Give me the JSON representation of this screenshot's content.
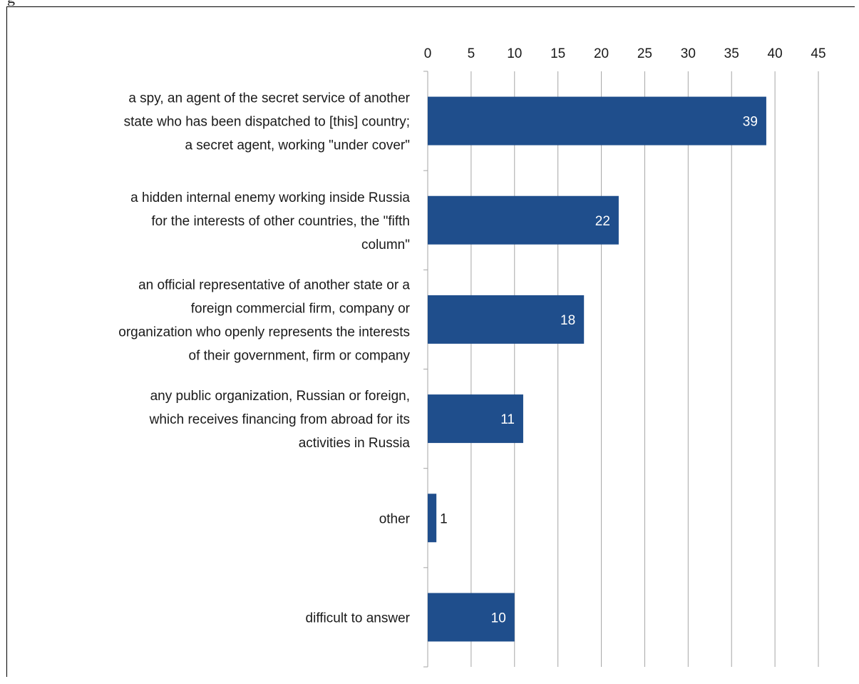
{
  "chart_data": {
    "type": "bar",
    "orientation": "horizontal",
    "title": "",
    "xlabel": "",
    "ylabel": "",
    "xlim": [
      0,
      45
    ],
    "ticks": [
      0,
      5,
      10,
      15,
      20,
      25,
      30,
      35,
      40,
      45
    ],
    "tick_labels": [
      "0",
      "5",
      "10",
      "15",
      "20",
      "25",
      "30",
      "35",
      "40",
      "45"
    ],
    "grid": true,
    "legend": "none",
    "bar_color": "#1f4e8c",
    "categories": [
      "a spy, an agent of the secret service of another state who has been dispatched to [this] country; a secret agent, working \"under cover\"",
      "a hidden internal enemy working inside Russia for the interests of other countries, the \"fifth column\"",
      "an official representative of another state or a foreign commercial firm, company or organization who openly represents the interests of their government, firm or company",
      "any public organization, Russian or foreign, which receives financing from abroad for its activities in Russia",
      "other",
      "difficult to answer"
    ],
    "category_lines": [
      [
        "a spy, an agent of the secret service of another",
        "state who has been dispatched to [this] country;",
        "a secret agent, working \"under cover\""
      ],
      [
        "a hidden internal enemy working inside Russia",
        "for the interests of other countries, the \"fifth",
        "column\""
      ],
      [
        "an official representative of another state or a",
        "foreign commercial firm, company or",
        "organization who openly represents the interests",
        "of their government, firm or company"
      ],
      [
        "any public organization, Russian or foreign,",
        "which receives financing from abroad for its",
        "activities in Russia"
      ],
      [
        "other"
      ],
      [
        "difficult to answer"
      ]
    ],
    "values": [
      39,
      22,
      18,
      11,
      1,
      10
    ],
    "data_labels": [
      "39",
      "22",
      "18",
      "11",
      "1",
      "10"
    ]
  }
}
